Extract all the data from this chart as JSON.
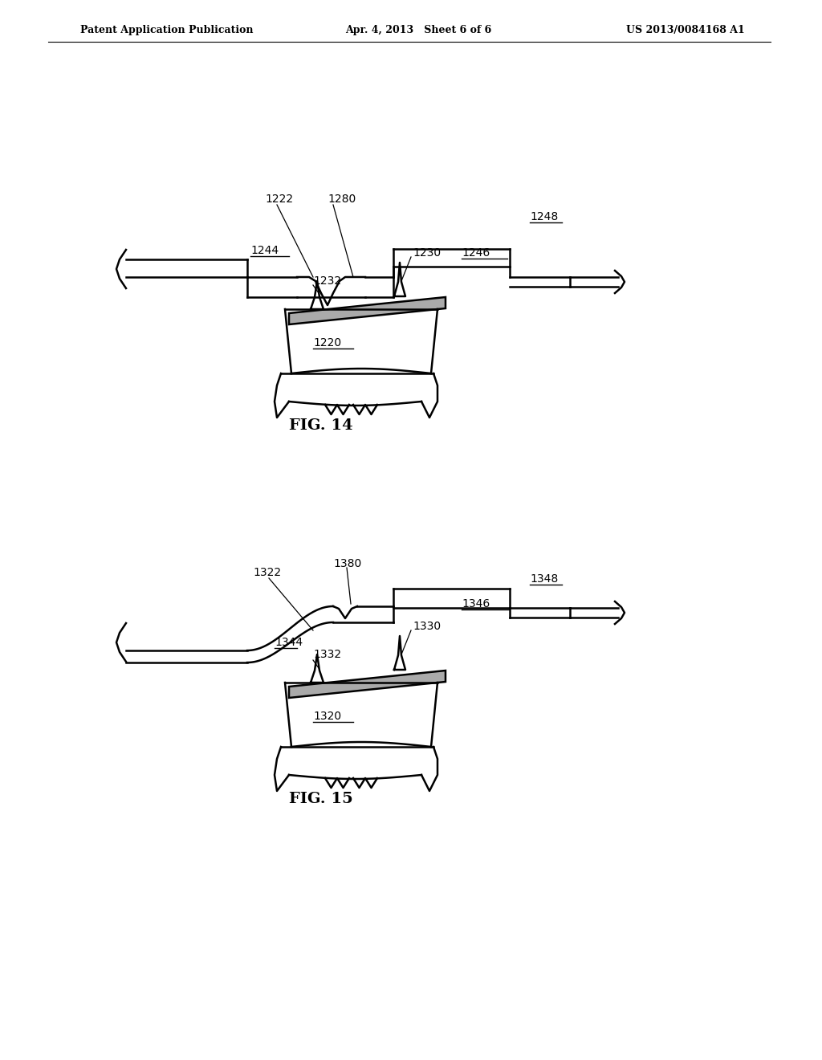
{
  "header_left": "Patent Application Publication",
  "header_mid": "Apr. 4, 2013   Sheet 6 of 6",
  "header_right": "US 2013/0084168 A1",
  "fig14_label": "FIG. 14",
  "fig15_label": "FIG. 15",
  "background_color": "#ffffff",
  "line_color": "#000000"
}
